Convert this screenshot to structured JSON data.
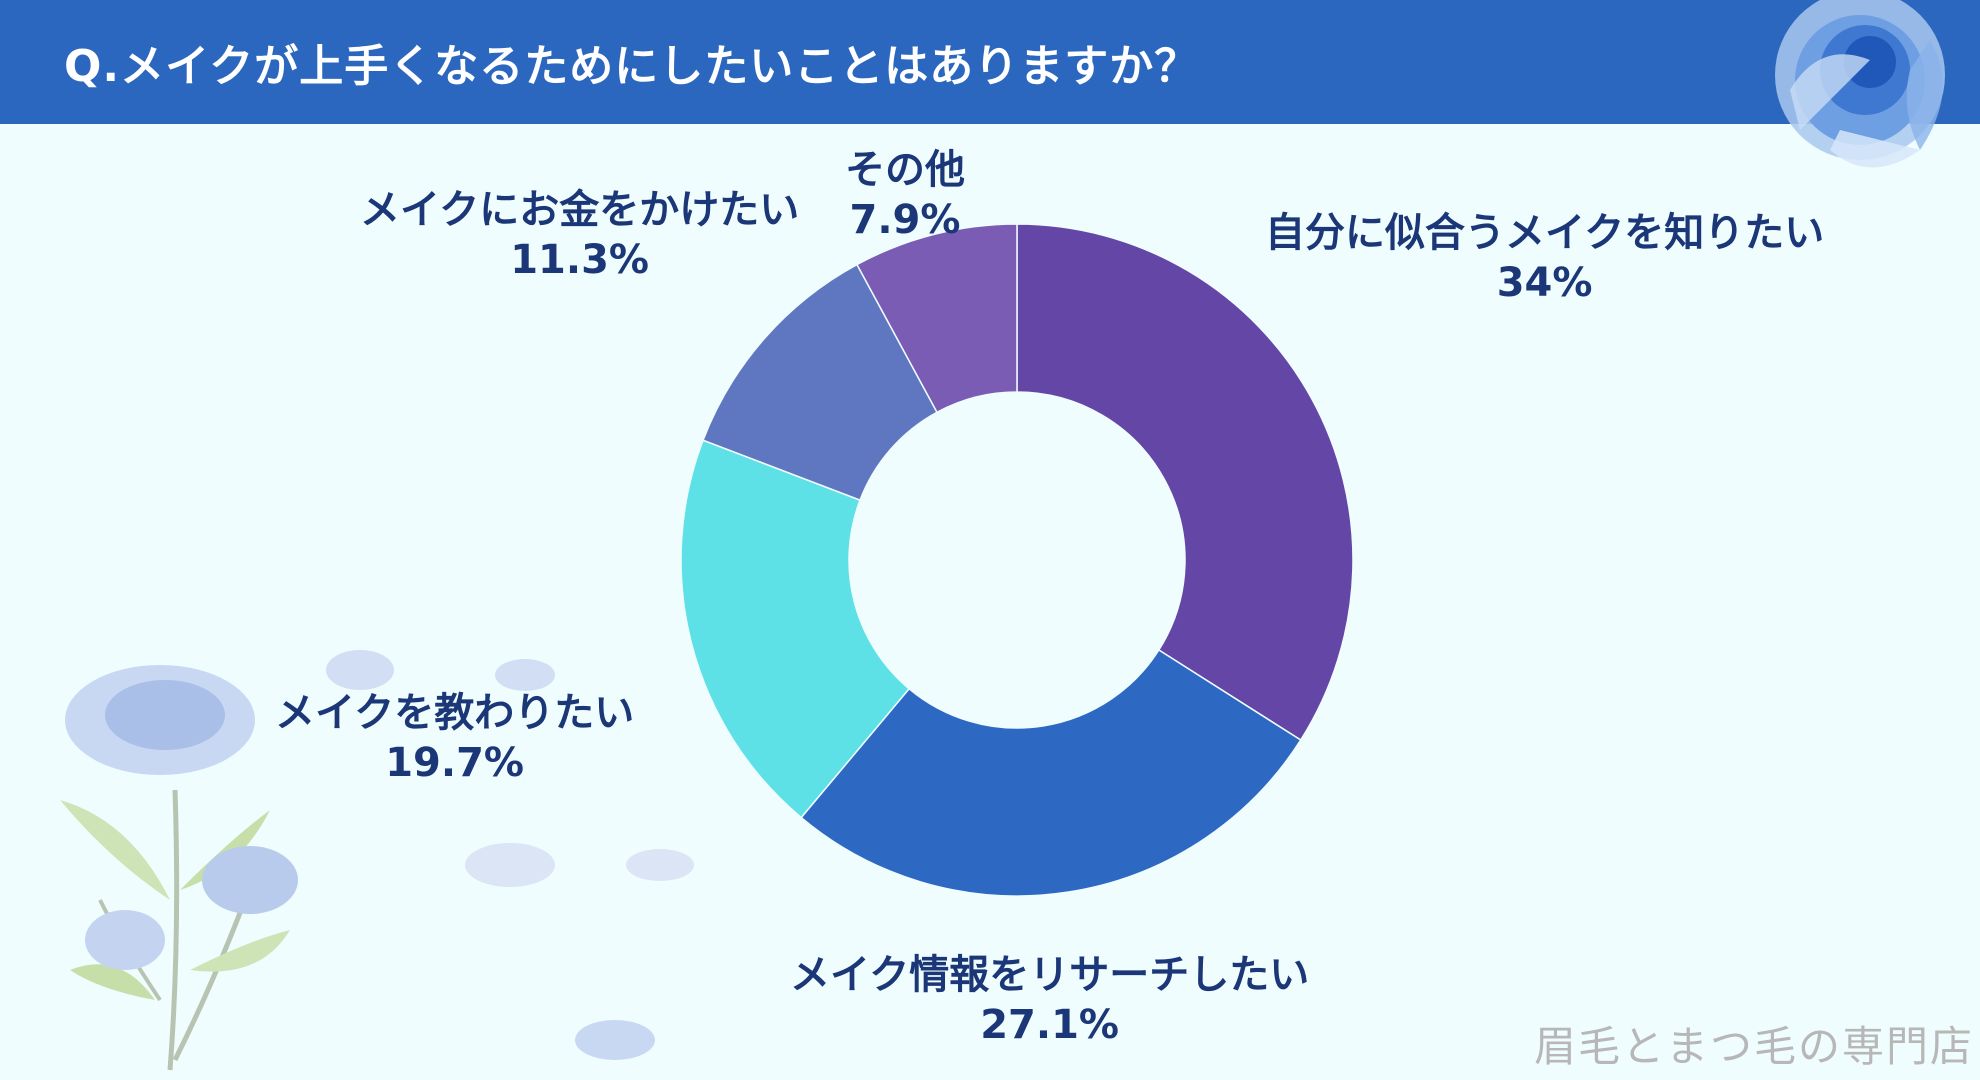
{
  "header": {
    "title": "Q.メイクが上手くなるためにしたいことはありますか？"
  },
  "watermark": "眉毛とまつ毛の専門店",
  "colors": {
    "background": "#f0fdfe",
    "header": "#2c67bf",
    "label": "#1b3777"
  },
  "chart_data": {
    "type": "pie",
    "donut": true,
    "title": "",
    "slices": [
      {
        "name": "自分に似合うメイクを知りたい",
        "value": 34,
        "label": "34%",
        "color": "#6446a6"
      },
      {
        "name": "メイク情報をリサーチしたい",
        "value": 27.1,
        "label": "27.1%",
        "color": "#2d69c3"
      },
      {
        "name": "メイクを教わりたい",
        "value": 19.7,
        "label": "19.7%",
        "color": "#5ee1e6"
      },
      {
        "name": "メイクにお金をかけたい",
        "value": 11.3,
        "label": "11.3%",
        "color": "#5f77c1"
      },
      {
        "name": "その他",
        "value": 7.9,
        "label": "7.9%",
        "color": "#7b5cb4"
      }
    ]
  }
}
